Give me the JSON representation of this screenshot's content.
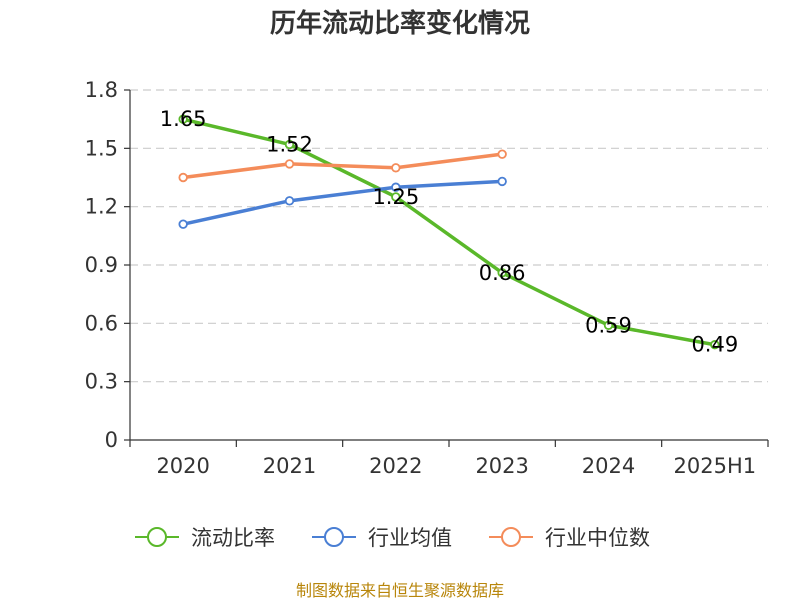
{
  "chart_data": {
    "type": "line",
    "title": "历年流动比率变化情况",
    "categories": [
      "2020",
      "2021",
      "2022",
      "2023",
      "2024",
      "2025H1"
    ],
    "ylim": [
      0,
      1.8
    ],
    "yticks": [
      "0",
      "0.3",
      "0.6",
      "0.9",
      "1.2",
      "1.5",
      "1.8"
    ],
    "grid": "horizontal-dashed",
    "legend_position": "bottom",
    "series": [
      {
        "name": "流动比率",
        "color": "#5ab82a",
        "values": [
          1.65,
          1.52,
          1.25,
          0.86,
          0.59,
          0.49
        ],
        "labels": [
          "1.65",
          "1.52",
          "1.25",
          "0.86",
          "0.59",
          "0.49"
        ]
      },
      {
        "name": "行业均值",
        "color": "#4a7fd4",
        "values": [
          1.11,
          1.23,
          1.3,
          1.33,
          null,
          null
        ]
      },
      {
        "name": "行业中位数",
        "color": "#f48c5a",
        "values": [
          1.35,
          1.42,
          1.4,
          1.47,
          null,
          null
        ]
      }
    ]
  },
  "source_text": "制图数据来自恒生聚源数据库"
}
